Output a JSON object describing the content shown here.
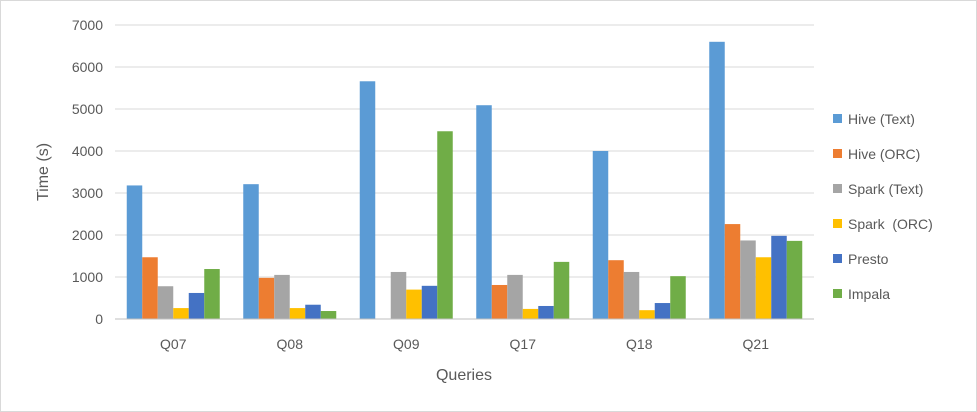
{
  "chart_data": {
    "type": "bar",
    "title": "",
    "xlabel": "Queries",
    "ylabel": "Time (s)",
    "ylim": [
      0,
      7000
    ],
    "yticks": [
      0,
      1000,
      2000,
      3000,
      4000,
      5000,
      6000,
      7000
    ],
    "grid": "horizontal",
    "legend_position": "right",
    "categories": [
      "Q07",
      "Q08",
      "Q09",
      "Q17",
      "Q18",
      "Q21"
    ],
    "series": [
      {
        "name": "Hive (Text)",
        "color": "#5b9bd5",
        "values": [
          3180,
          3210,
          5660,
          5090,
          4000,
          6600
        ]
      },
      {
        "name": "Hive (ORC)",
        "color": "#ed7d31",
        "values": [
          1470,
          980,
          0,
          810,
          1400,
          2260
        ]
      },
      {
        "name": "Spark (Text)",
        "color": "#a5a5a5",
        "values": [
          780,
          1050,
          1120,
          1050,
          1120,
          1870
        ]
      },
      {
        "name": "Spark  (ORC)",
        "color": "#ffc000",
        "values": [
          260,
          260,
          700,
          240,
          210,
          1470
        ]
      },
      {
        "name": "Presto",
        "color": "#4472c4",
        "values": [
          620,
          340,
          790,
          310,
          380,
          1980
        ]
      },
      {
        "name": "Impala",
        "color": "#70ad47",
        "values": [
          1190,
          190,
          4470,
          1360,
          1020,
          1860
        ]
      }
    ]
  }
}
